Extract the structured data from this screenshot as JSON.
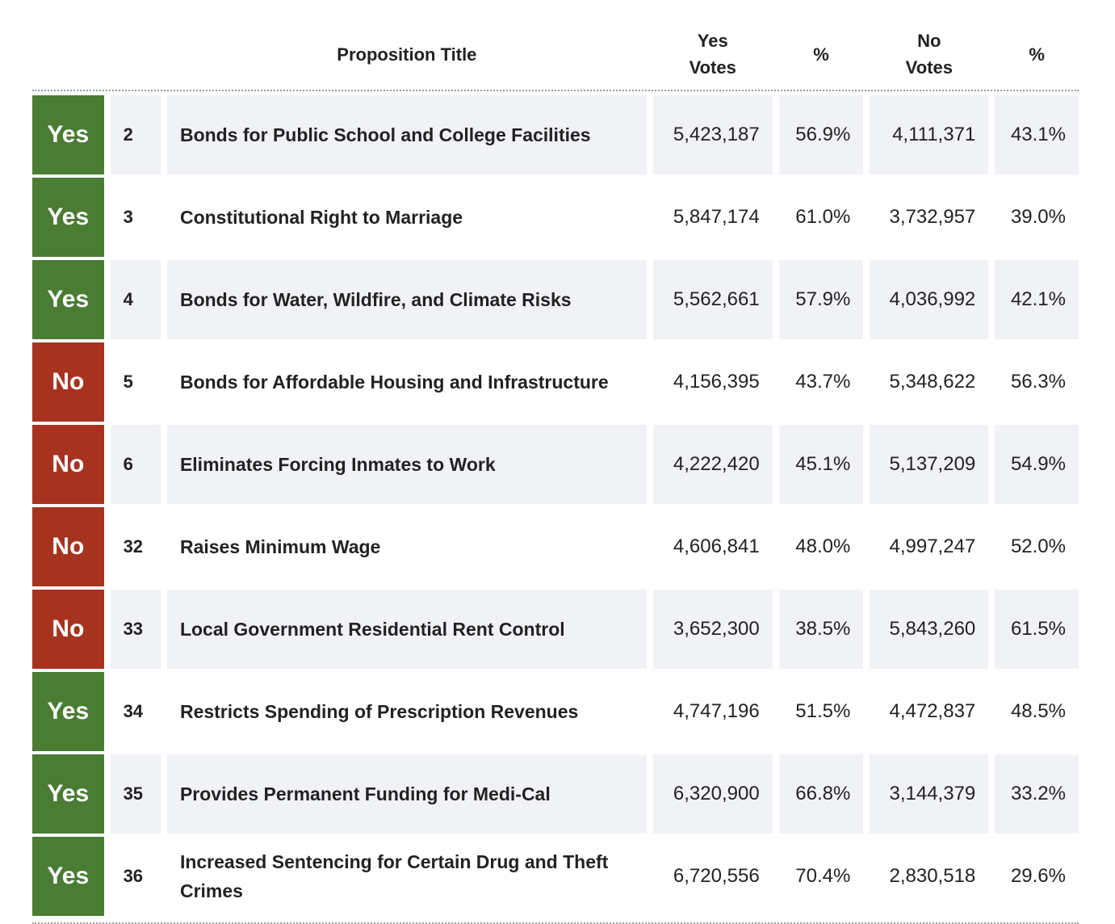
{
  "headers": {
    "title": "Proposition Title",
    "yes_votes_line1": "Yes",
    "yes_votes_line2": "Votes",
    "yes_pct": "%",
    "no_votes_line1": "No",
    "no_votes_line2": "Votes",
    "no_pct": "%"
  },
  "colors": {
    "yes": "#4a7c34",
    "no": "#a63320",
    "row_shade": "#f1f2f6"
  },
  "rows": [
    {
      "result": "Yes",
      "num": "2",
      "title": "Bonds for Public School and College Facilities",
      "yes_votes": "5,423,187",
      "yes_pct": "56.9%",
      "no_votes": "4,111,371",
      "no_pct": "43.1%"
    },
    {
      "result": "Yes",
      "num": "3",
      "title": "Constitutional Right to Marriage",
      "yes_votes": "5,847,174",
      "yes_pct": "61.0%",
      "no_votes": "3,732,957",
      "no_pct": "39.0%"
    },
    {
      "result": "Yes",
      "num": "4",
      "title": "Bonds for Water, Wildfire, and Climate Risks",
      "yes_votes": "5,562,661",
      "yes_pct": "57.9%",
      "no_votes": "4,036,992",
      "no_pct": "42.1%"
    },
    {
      "result": "No",
      "num": "5",
      "title": "Bonds for Affordable Housing and Infrastructure",
      "yes_votes": "4,156,395",
      "yes_pct": "43.7%",
      "no_votes": "5,348,622",
      "no_pct": "56.3%"
    },
    {
      "result": "No",
      "num": "6",
      "title": "Eliminates Forcing Inmates to Work",
      "yes_votes": "4,222,420",
      "yes_pct": "45.1%",
      "no_votes": "5,137,209",
      "no_pct": "54.9%"
    },
    {
      "result": "No",
      "num": "32",
      "title": "Raises Minimum Wage",
      "yes_votes": "4,606,841",
      "yes_pct": "48.0%",
      "no_votes": "4,997,247",
      "no_pct": "52.0%"
    },
    {
      "result": "No",
      "num": "33",
      "title": "Local Government Residential Rent Control",
      "yes_votes": "3,652,300",
      "yes_pct": "38.5%",
      "no_votes": "5,843,260",
      "no_pct": "61.5%"
    },
    {
      "result": "Yes",
      "num": "34",
      "title": "Restricts Spending of Prescription Revenues",
      "yes_votes": "4,747,196",
      "yes_pct": "51.5%",
      "no_votes": "4,472,837",
      "no_pct": "48.5%"
    },
    {
      "result": "Yes",
      "num": "35",
      "title": "Provides Permanent Funding for Medi-Cal",
      "yes_votes": "6,320,900",
      "yes_pct": "66.8%",
      "no_votes": "3,144,379",
      "no_pct": "33.2%"
    },
    {
      "result": "Yes",
      "num": "36",
      "title": "Increased Sentencing for Certain Drug and Theft Crimes",
      "yes_votes": "6,720,556",
      "yes_pct": "70.4%",
      "no_votes": "2,830,518",
      "no_pct": "29.6%"
    }
  ]
}
